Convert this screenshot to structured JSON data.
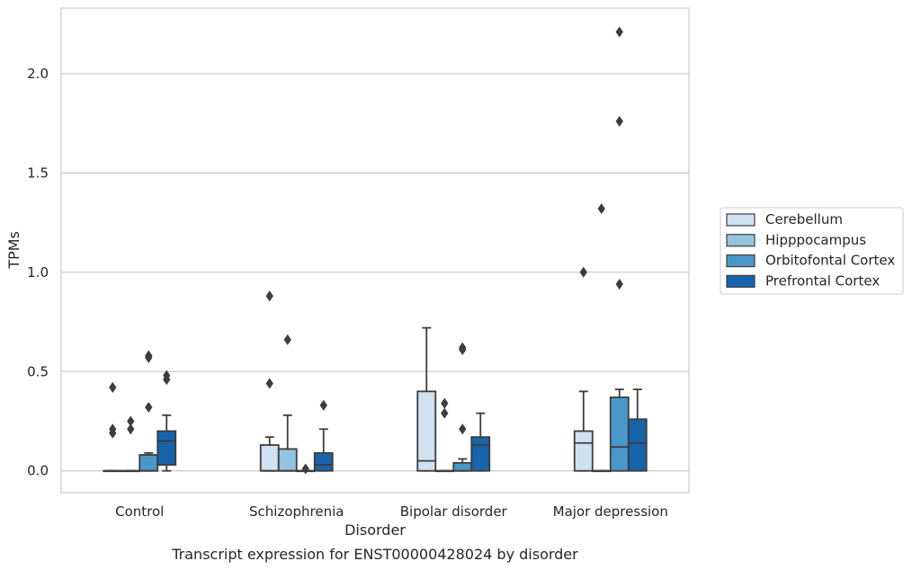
{
  "chart_data": {
    "type": "box",
    "xlabel": "Disorder",
    "ylabel": "TPMs",
    "caption": "Transcript expression for ENST00000428024 by disorder",
    "ylim": [
      -0.11,
      2.33
    ],
    "yticks": [
      0.0,
      0.5,
      1.0,
      1.5,
      2.0
    ],
    "ytick_labels": [
      "0.0",
      "0.5",
      "1.0",
      "1.5",
      "2.0"
    ],
    "categories": [
      "Control",
      "Schizophrenia",
      "Bipolar disorder",
      "Major depression"
    ],
    "grid": true,
    "legend_position": "right",
    "series": [
      {
        "name": "Cerebellum",
        "color": "#d0e1f2",
        "boxes": [
          {
            "q1": 0.0,
            "median": 0.0,
            "q3": 0.0,
            "whisker_low": 0.0,
            "whisker_high": 0.0,
            "outliers": [
              0.42,
              0.21,
              0.19
            ]
          },
          {
            "q1": 0.0,
            "median": 0.0,
            "q3": 0.13,
            "whisker_low": 0.0,
            "whisker_high": 0.17,
            "outliers": [
              0.88,
              0.44
            ]
          },
          {
            "q1": 0.0,
            "median": 0.05,
            "q3": 0.4,
            "whisker_low": 0.0,
            "whisker_high": 0.72,
            "outliers": []
          },
          {
            "q1": 0.0,
            "median": 0.14,
            "q3": 0.2,
            "whisker_low": 0.0,
            "whisker_high": 0.4,
            "outliers": [
              1.0
            ]
          }
        ]
      },
      {
        "name": "Hipppocampus",
        "color": "#94c4df",
        "boxes": [
          {
            "q1": 0.0,
            "median": 0.0,
            "q3": 0.0,
            "whisker_low": 0.0,
            "whisker_high": 0.0,
            "outliers": [
              0.25,
              0.21
            ]
          },
          {
            "q1": 0.0,
            "median": 0.0,
            "q3": 0.11,
            "whisker_low": 0.0,
            "whisker_high": 0.28,
            "outliers": [
              0.66
            ]
          },
          {
            "q1": 0.0,
            "median": 0.0,
            "q3": 0.0,
            "whisker_low": 0.0,
            "whisker_high": 0.0,
            "outliers": [
              0.34,
              0.29
            ]
          },
          {
            "q1": 0.0,
            "median": 0.0,
            "q3": 0.0,
            "whisker_low": 0.0,
            "whisker_high": 0.0,
            "outliers": [
              1.32
            ]
          }
        ]
      },
      {
        "name": "Orbitofontal Cortex",
        "color": "#4a98c9",
        "boxes": [
          {
            "q1": 0.0,
            "median": 0.0,
            "q3": 0.08,
            "whisker_low": 0.0,
            "whisker_high": 0.09,
            "outliers": [
              0.58,
              0.57,
              0.32
            ]
          },
          {
            "q1": 0.0,
            "median": 0.0,
            "q3": 0.0,
            "whisker_low": 0.0,
            "whisker_high": 0.0,
            "outliers": [
              0.01
            ]
          },
          {
            "q1": 0.0,
            "median": 0.0,
            "q3": 0.04,
            "whisker_low": 0.0,
            "whisker_high": 0.06,
            "outliers": [
              0.62,
              0.61,
              0.21
            ]
          },
          {
            "q1": 0.0,
            "median": 0.12,
            "q3": 0.37,
            "whisker_low": 0.0,
            "whisker_high": 0.41,
            "outliers": [
              2.21,
              1.76,
              0.94
            ]
          }
        ]
      },
      {
        "name": "Prefrontal Cortex",
        "color": "#1764ab",
        "boxes": [
          {
            "q1": 0.03,
            "median": 0.15,
            "q3": 0.2,
            "whisker_low": 0.0,
            "whisker_high": 0.28,
            "outliers": [
              0.48,
              0.46
            ]
          },
          {
            "q1": 0.0,
            "median": 0.03,
            "q3": 0.09,
            "whisker_low": 0.0,
            "whisker_high": 0.21,
            "outliers": [
              0.33
            ]
          },
          {
            "q1": 0.0,
            "median": 0.13,
            "q3": 0.17,
            "whisker_low": 0.0,
            "whisker_high": 0.29,
            "outliers": []
          },
          {
            "q1": 0.0,
            "median": 0.14,
            "q3": 0.26,
            "whisker_low": 0.0,
            "whisker_high": 0.41,
            "outliers": []
          }
        ]
      }
    ]
  }
}
